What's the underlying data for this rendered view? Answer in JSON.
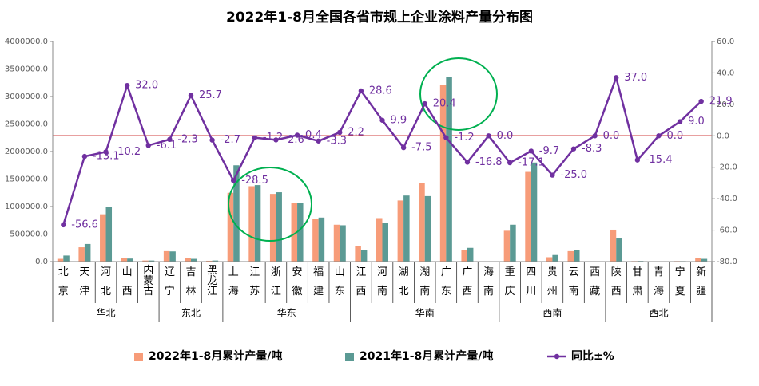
{
  "chart_data": {
    "type": "bar-line",
    "title": "2022年1-8月全国各省市规上企业涂料产量分布图",
    "groups": [
      {
        "name": "华北",
        "categories": [
          "北京",
          "天津",
          "河北",
          "山西",
          "内蒙古"
        ]
      },
      {
        "name": "东北",
        "categories": [
          "辽宁",
          "吉林",
          "黑龙江"
        ]
      },
      {
        "name": "华东",
        "categories": [
          "上海",
          "江苏",
          "浙江",
          "安徽",
          "福建",
          "山东"
        ]
      },
      {
        "name": "华南",
        "categories": [
          "江西",
          "河南",
          "湖北",
          "湖南",
          "广东",
          "广西",
          "海南"
        ]
      },
      {
        "name": "西南",
        "categories": [
          "重庆",
          "四川",
          "贵州",
          "云南",
          "西藏"
        ]
      },
      {
        "name": "西北",
        "categories": [
          "陕西",
          "甘肃",
          "青海",
          "宁夏",
          "新疆"
        ]
      }
    ],
    "series": [
      {
        "name": "2022年1-8月累计产量/吨",
        "kind": "bar",
        "color": "#F79C79",
        "values": [
          50000,
          260000,
          860000,
          60000,
          20000,
          190000,
          60000,
          15000,
          1250000,
          1370000,
          1230000,
          1060000,
          780000,
          670000,
          280000,
          790000,
          1110000,
          1430000,
          3210000,
          210000,
          5000,
          560000,
          1630000,
          80000,
          190000,
          0,
          580000,
          10000,
          3000,
          10000,
          60000
        ]
      },
      {
        "name": "2021年1-8月累计产量/吨",
        "kind": "bar",
        "color": "#5B9A94",
        "values": [
          110000,
          320000,
          990000,
          55000,
          20000,
          185000,
          50000,
          20000,
          1750000,
          1390000,
          1260000,
          1060000,
          800000,
          660000,
          210000,
          710000,
          1200000,
          1190000,
          3350000,
          250000,
          5000,
          670000,
          1800000,
          120000,
          210000,
          0,
          420000,
          12000,
          3000,
          9000,
          50000
        ]
      },
      {
        "name": "同比±%",
        "kind": "line",
        "axis": "y2",
        "color": "#7030A0",
        "values": [
          -56.6,
          -13.1,
          -10.2,
          32.0,
          -6.1,
          -2.3,
          25.7,
          -2.7,
          -28.5,
          -1.2,
          -2.6,
          0.4,
          -3.3,
          2.2,
          28.6,
          9.9,
          -7.5,
          20.4,
          -1.2,
          -16.8,
          0.0,
          -17.1,
          -9.7,
          -25.0,
          -8.3,
          0.0,
          37.0,
          -15.4,
          0.0,
          9.0,
          21.9
        ],
        "value_labels": [
          "-56.6",
          "-13.1",
          "-10.2",
          "32.0",
          "-6.1",
          "-2.3",
          "25.7",
          "-2.7",
          "-28.5",
          "-1.2",
          "-2.6",
          "0.4",
          "-3.3",
          "2.2",
          "28.6",
          "9.9",
          "-7.5",
          "20.4",
          "-1.2",
          "-16.8",
          "0.0",
          "-17.1",
          "-9.7",
          "-25.0",
          "-8.3",
          "0.0",
          "37.0",
          "-15.4",
          "0.0",
          "9.0",
          "21.9"
        ]
      }
    ],
    "ylim": [
      0,
      4000000
    ],
    "yticks": [
      {
        "value": 0,
        "label": "0.0"
      },
      {
        "value": 500000,
        "label": "500000.0"
      },
      {
        "value": 1000000,
        "label": "1000000.0"
      },
      {
        "value": 1500000,
        "label": "1500000.0"
      },
      {
        "value": 2000000,
        "label": "2000000.0"
      },
      {
        "value": 2500000,
        "label": "2500000.0"
      },
      {
        "value": 3000000,
        "label": "3000000.0"
      },
      {
        "value": 3500000,
        "label": "3500000.0"
      },
      {
        "value": 4000000,
        "label": "4000000.0"
      }
    ],
    "y2lim": [
      -80,
      60
    ],
    "y2ticks": [
      {
        "value": -80,
        "label": "-80.0"
      },
      {
        "value": -60,
        "label": "-60.0"
      },
      {
        "value": -40,
        "label": "-40.0"
      },
      {
        "value": -20,
        "label": "-20.0"
      },
      {
        "value": 0,
        "label": "0.0"
      },
      {
        "value": 20,
        "label": "20.0"
      },
      {
        "value": 40,
        "label": "40.0"
      },
      {
        "value": 60,
        "label": "60.0"
      }
    ],
    "reference_line": {
      "axis": "y2",
      "value": 0,
      "color": "#C00000"
    },
    "grid": false,
    "legend": "bottom"
  }
}
